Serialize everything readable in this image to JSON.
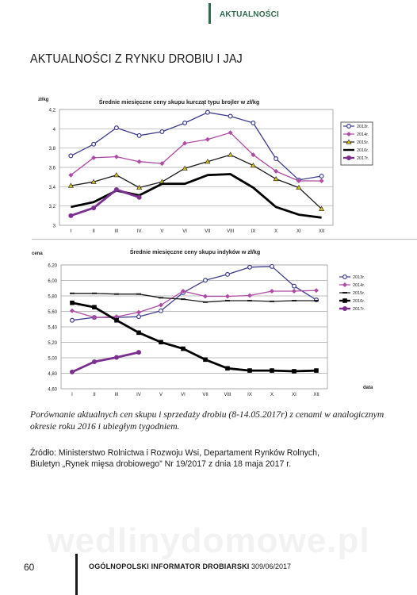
{
  "header": {
    "section": "AKTUALNOŚCI"
  },
  "title": "AKTUALNOŚCI Z RYNKU DROBIU I JAJ",
  "months": [
    "I",
    "II",
    "III",
    "IV",
    "V",
    "VI",
    "VII",
    "VIII",
    "IX",
    "X",
    "XI",
    "XII"
  ],
  "chart_data": [
    {
      "type": "line",
      "title": "Średnie miesięczne ceny skupu kurcząt typu brojler w zł/kg",
      "ylabel": "zł/kg",
      "xlabel": "",
      "ylim": [
        3,
        4.2
      ],
      "yticks": [
        "3",
        "3,2",
        "3,4",
        "3,6",
        "3,8",
        "4",
        "4,2"
      ],
      "legend_position": "right",
      "categories": [
        "I",
        "II",
        "III",
        "IV",
        "V",
        "VI",
        "VII",
        "VIII",
        "IX",
        "X",
        "XI",
        "XII"
      ],
      "series": [
        {
          "name": "2013r.",
          "color": "#3d3d8f",
          "marker": "circle-open",
          "values": [
            3.72,
            3.84,
            4.01,
            3.93,
            3.97,
            4.06,
            4.17,
            4.13,
            4.06,
            3.69,
            3.47,
            3.51
          ]
        },
        {
          "name": "2014r.",
          "color": "#b04aa5",
          "marker": "diamond",
          "values": [
            3.52,
            3.7,
            3.71,
            3.66,
            3.64,
            3.85,
            3.89,
            3.96,
            3.73,
            3.56,
            3.46,
            3.46
          ]
        },
        {
          "name": "2015r.",
          "color": "#1a1a1a",
          "marker": "triangle",
          "values": [
            3.41,
            3.45,
            3.52,
            3.39,
            3.45,
            3.59,
            3.66,
            3.73,
            3.62,
            3.48,
            3.39,
            3.17
          ]
        },
        {
          "name": "2016r.",
          "color": "#000000",
          "marker": "none",
          "bold": true,
          "values": [
            3.19,
            3.24,
            3.36,
            3.31,
            3.43,
            3.43,
            3.52,
            3.53,
            3.39,
            3.19,
            3.11,
            3.08
          ]
        },
        {
          "name": "2017r.",
          "color": "#7b2f8f",
          "marker": "circle",
          "bold": true,
          "values": [
            3.1,
            3.18,
            3.37,
            3.29,
            null,
            null,
            null,
            null,
            null,
            null,
            null,
            null
          ]
        }
      ]
    },
    {
      "type": "line",
      "title": "Średnie miesięczne ceny skupu indyków w zł/kg",
      "ylabel": "cena",
      "xlabel": "data",
      "ylim": [
        4.6,
        6.3
      ],
      "yticks": [
        "4,60",
        "4,80",
        "5,00",
        "5,20",
        "5,40",
        "5,60",
        "5,80",
        "6,00",
        "6,20"
      ],
      "legend_position": "right",
      "categories": [
        "I",
        "II",
        "III",
        "IV",
        "V",
        "VI",
        "VII",
        "VIII",
        "IX",
        "X",
        "XI",
        "XII"
      ],
      "series": [
        {
          "name": "2013r.",
          "color": "#3d3d8f",
          "marker": "circle-open",
          "values": [
            5.54,
            5.58,
            5.58,
            5.59,
            5.67,
            5.92,
            6.09,
            6.17,
            6.27,
            6.28,
            6.01,
            5.82
          ]
        },
        {
          "name": "2014r.",
          "color": "#b04aa5",
          "marker": "diamond",
          "values": [
            5.67,
            5.58,
            5.59,
            5.65,
            5.75,
            5.94,
            5.87,
            5.87,
            5.88,
            5.94,
            5.94,
            5.95
          ]
        },
        {
          "name": "2015r.",
          "color": "#1a1a1a",
          "marker": "dash",
          "values": [
            5.91,
            5.91,
            5.9,
            5.9,
            5.85,
            5.83,
            5.79,
            5.81,
            5.81,
            5.8,
            5.81,
            5.81
          ]
        },
        {
          "name": "2016r.",
          "color": "#000000",
          "marker": "square",
          "bold": true,
          "values": [
            5.78,
            5.72,
            5.54,
            5.37,
            5.24,
            5.15,
            5.0,
            4.88,
            4.85,
            4.85,
            4.84,
            4.85
          ]
        },
        {
          "name": "2017r.",
          "color": "#7b2f8f",
          "marker": "circle",
          "bold": true,
          "values": [
            4.83,
            4.97,
            5.03,
            5.1,
            null,
            null,
            null,
            null,
            null,
            null,
            null,
            null
          ]
        }
      ]
    }
  ],
  "caption": "Porównanie aktualnych cen skupu i sprzedaży drobiu (8-14.05.2017r) z cenami w analogicznym okresie roku 2016 i ubiegłym tygodniem.",
  "source": {
    "line1": "Źródło: Ministerstwo Rolnictwa i Rozwoju Wsi, Departament Rynków Rolnych,",
    "line2": "Biuletyn „Rynek mięsa drobiowego” Nr 19/2017 z dnia 18 maja 2017 r."
  },
  "watermark": "wedlinydomowe.pl",
  "footer": {
    "page": "60",
    "publication": "OGÓLNOPOLSKI INFORMATOR DROBIARSKI",
    "issue": "309/06/2017"
  }
}
